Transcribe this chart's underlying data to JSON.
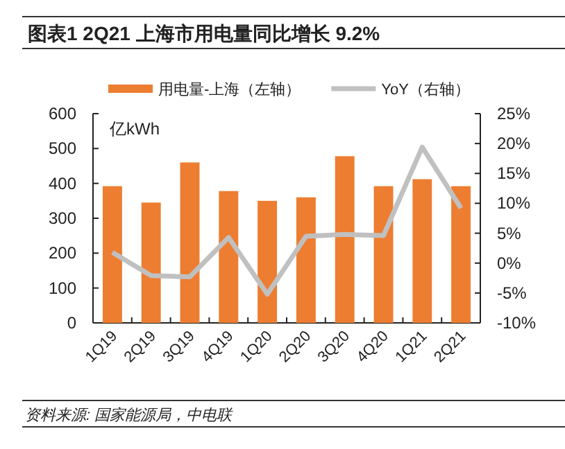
{
  "chart_data": {
    "type": "bar",
    "title": "图表1 2Q21 上海市用电量同比增长 9.2%",
    "ylabel": "亿kWh",
    "categories": [
      "1Q19",
      "2Q19",
      "3Q19",
      "4Q19",
      "1Q20",
      "2Q20",
      "3Q20",
      "4Q20",
      "1Q21",
      "2Q21"
    ],
    "series": [
      {
        "name": "用电量-上海（左轴）",
        "color": "#ed7d31",
        "values": [
          392,
          345,
          460,
          378,
          350,
          360,
          478,
          392,
          412,
          392
        ]
      },
      {
        "name": "YoY（右轴）",
        "type": "line",
        "axis": "y2",
        "color": "#c0c0c0",
        "values": [
          1.8,
          -2.1,
          -2.3,
          4.3,
          -5.2,
          4.5,
          4.8,
          4.6,
          19.4,
          9.2
        ]
      }
    ],
    "ylim": [
      0,
      600
    ],
    "yticks": [
      0,
      100,
      200,
      300,
      400,
      500,
      600
    ],
    "y2lim": [
      -10,
      25
    ],
    "y2ticks": [
      {
        "value": -10,
        "label": "-10%"
      },
      {
        "value": -5,
        "label": "-5%"
      },
      {
        "value": 0,
        "label": "0%"
      },
      {
        "value": 5,
        "label": "5%"
      },
      {
        "value": 10,
        "label": "10%"
      },
      {
        "value": 15,
        "label": "15%"
      },
      {
        "value": 20,
        "label": "20%"
      },
      {
        "value": 25,
        "label": "25%"
      }
    ],
    "legend": "top",
    "annotations": [
      "资料来源: 国家能源局，中电联"
    ]
  }
}
